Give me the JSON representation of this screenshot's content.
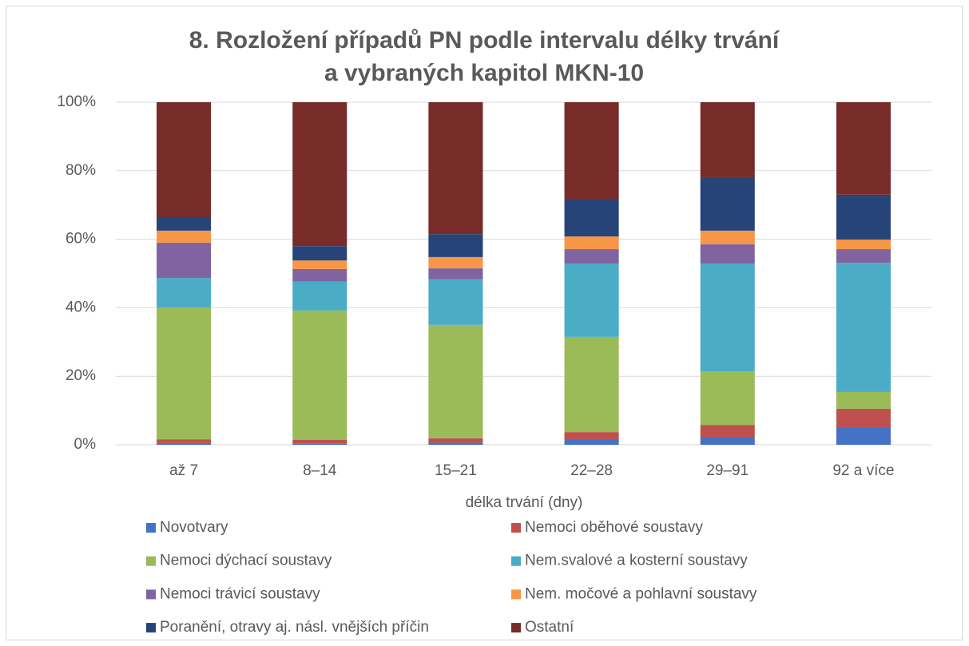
{
  "chart_data": {
    "type": "bar",
    "stacked": true,
    "title": [
      "8. Rozložení případů PN podle intervalu délky trvání",
      "a vybraných kapitol MKN-10"
    ],
    "x_label": "délka trvání (dny)",
    "categories": [
      "až 7",
      "8–14",
      "15–21",
      "22–28",
      "29–91",
      "92 a více"
    ],
    "series": [
      {
        "name": "Novotvary",
        "color": "#4472c4",
        "values": [
          0.5,
          0.4,
          0.6,
          1.4,
          2.1,
          4.9
        ]
      },
      {
        "name": "Nemoci oběhové soustavy",
        "color": "#c0504d",
        "values": [
          1.1,
          1.0,
          1.3,
          2.3,
          3.7,
          5.6
        ]
      },
      {
        "name": "Nemoci dýchací soustavy",
        "color": "#9bbb59",
        "values": [
          38.5,
          37.8,
          33.1,
          27.8,
          15.6,
          4.9
        ]
      },
      {
        "name": "Nem.svalové a kosterní soustavy",
        "color": "#4bacc6",
        "values": [
          8.6,
          8.4,
          13.3,
          21.4,
          31.5,
          37.7
        ]
      },
      {
        "name": "Nemoci trávicí soustavy",
        "color": "#8064a2",
        "values": [
          10.3,
          3.7,
          3.2,
          4.2,
          5.6,
          4.0
        ]
      },
      {
        "name": "Nem. močové a pohlavní soustavy",
        "color": "#f79646",
        "values": [
          3.5,
          2.5,
          3.3,
          3.7,
          4.0,
          2.8
        ]
      },
      {
        "name": "Poranění, otravy aj. násl. vnějších příčin",
        "color": "#264478",
        "values": [
          3.7,
          4.2,
          6.7,
          11.0,
          15.6,
          13.1
        ]
      },
      {
        "name": "Ostatní",
        "color": "#772c2a",
        "values": [
          33.8,
          42.0,
          38.5,
          28.2,
          21.9,
          27.0
        ]
      }
    ],
    "ylim": [
      0,
      100
    ],
    "yticks": [
      {
        "value": 0,
        "label": "0%"
      },
      {
        "value": 20,
        "label": "20%"
      },
      {
        "value": 40,
        "label": "40%"
      },
      {
        "value": 60,
        "label": "60%"
      },
      {
        "value": 80,
        "label": "80%"
      },
      {
        "value": 100,
        "label": "100%"
      }
    ],
    "grid": true,
    "legend": "bottom"
  }
}
